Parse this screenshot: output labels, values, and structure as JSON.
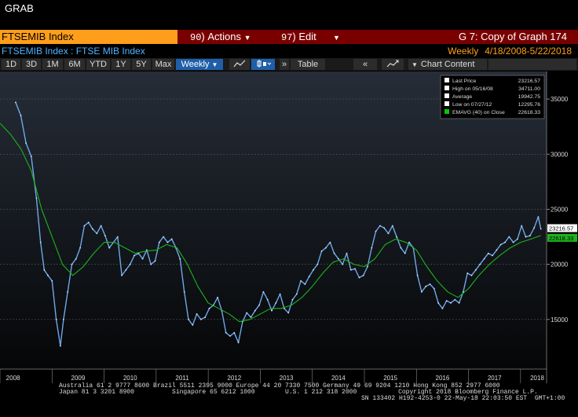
{
  "app": {
    "title": "GRAB"
  },
  "header": {
    "ticker": "FTSEMIB Index",
    "actions_num": "90",
    "actions_label": "Actions",
    "edit_num": "97",
    "edit_label": "Edit",
    "graph_title": "G 7: Copy of Graph 174",
    "subtitle": "FTSEMIB Index : FTSE MIB Index",
    "frequency": "Weekly",
    "date_range": "4/18/2008-5/22/2018"
  },
  "toolbar": {
    "buttons": [
      "1D",
      "3D",
      "1M",
      "6M",
      "YTD",
      "1Y",
      "5Y",
      "Max"
    ],
    "period_select": "Weekly",
    "table_label": "Table",
    "chart_content_label": "Chart Content"
  },
  "legend": {
    "rows": [
      {
        "label": "Last Price",
        "value": "23216.57",
        "color": "#ffffff"
      },
      {
        "label": "High on 05/16/08",
        "value": "34711.00",
        "color": "#ffffff"
      },
      {
        "label": "Average",
        "value": "19942.75",
        "color": "#ffffff"
      },
      {
        "label": "Low on 07/27/12",
        "value": "12295.76",
        "color": "#ffffff"
      },
      {
        "label": "EMAVG (40) on Close",
        "value": "22618.33",
        "color": "#00cc00"
      }
    ]
  },
  "footer": {
    "line1": "Australia 61 2 9777 8600 Brazil 5511 2395 9000 Europe 44 20 7330 7500 Germany 49 69 9204 1210 Hong Kong 852 2977 6000",
    "line2": "Japan 81 3 3201 8900          Singapore 65 6212 1000        U.S. 1 212 318 2000           Copyright 2018 Bloomberg Finance L.P.",
    "line3": "SN 133402 H192-4253-0 22-May-18 22:03:50 EST  GMT+1:00"
  },
  "chart_data": {
    "type": "line",
    "y_ticks": [
      15000,
      20000,
      25000,
      30000,
      35000
    ],
    "ylim": [
      10500,
      37500
    ],
    "x_years": [
      "2008",
      "2009",
      "2010",
      "2011",
      "2012",
      "2013",
      "2014",
      "2015",
      "2016",
      "2017",
      "2018"
    ],
    "xlim": [
      2008.0,
      2018.5
    ],
    "last_price_label": "23216.57",
    "ema_label": "22618.33",
    "series": [
      {
        "name": "Last Price",
        "color": "#6fa8e8",
        "points": [
          [
            2008.3,
            34700
          ],
          [
            2008.4,
            33500
          ],
          [
            2008.5,
            31000
          ],
          [
            2008.6,
            29800
          ],
          [
            2008.7,
            26000
          ],
          [
            2008.78,
            22000
          ],
          [
            2008.85,
            19500
          ],
          [
            2008.92,
            19000
          ],
          [
            2009.0,
            18500
          ],
          [
            2009.08,
            15000
          ],
          [
            2009.16,
            12600
          ],
          [
            2009.22,
            15000
          ],
          [
            2009.3,
            17500
          ],
          [
            2009.38,
            20000
          ],
          [
            2009.46,
            20500
          ],
          [
            2009.54,
            21500
          ],
          [
            2009.62,
            23500
          ],
          [
            2009.7,
            23800
          ],
          [
            2009.78,
            23200
          ],
          [
            2009.86,
            22800
          ],
          [
            2009.94,
            23500
          ],
          [
            2010.02,
            22600
          ],
          [
            2010.1,
            21500
          ],
          [
            2010.18,
            22000
          ],
          [
            2010.26,
            22500
          ],
          [
            2010.34,
            19000
          ],
          [
            2010.42,
            19500
          ],
          [
            2010.5,
            20000
          ],
          [
            2010.58,
            20800
          ],
          [
            2010.66,
            21000
          ],
          [
            2010.74,
            20500
          ],
          [
            2010.82,
            21300
          ],
          [
            2010.9,
            20000
          ],
          [
            2010.98,
            20300
          ],
          [
            2011.06,
            22000
          ],
          [
            2011.14,
            22500
          ],
          [
            2011.22,
            22000
          ],
          [
            2011.3,
            22300
          ],
          [
            2011.38,
            21500
          ],
          [
            2011.46,
            20500
          ],
          [
            2011.54,
            17500
          ],
          [
            2011.62,
            15000
          ],
          [
            2011.7,
            14500
          ],
          [
            2011.78,
            15500
          ],
          [
            2011.86,
            15000
          ],
          [
            2011.94,
            15200
          ],
          [
            2012.02,
            16000
          ],
          [
            2012.1,
            16300
          ],
          [
            2012.18,
            17000
          ],
          [
            2012.26,
            15800
          ],
          [
            2012.34,
            13800
          ],
          [
            2012.42,
            13500
          ],
          [
            2012.5,
            13800
          ],
          [
            2012.58,
            12900
          ],
          [
            2012.66,
            14800
          ],
          [
            2012.74,
            15600
          ],
          [
            2012.82,
            15200
          ],
          [
            2012.9,
            15800
          ],
          [
            2012.98,
            16300
          ],
          [
            2013.06,
            17500
          ],
          [
            2013.14,
            16800
          ],
          [
            2013.22,
            15800
          ],
          [
            2013.3,
            16500
          ],
          [
            2013.38,
            17300
          ],
          [
            2013.46,
            16000
          ],
          [
            2013.54,
            15600
          ],
          [
            2013.62,
            16800
          ],
          [
            2013.7,
            17300
          ],
          [
            2013.78,
            18500
          ],
          [
            2013.86,
            18200
          ],
          [
            2013.94,
            18900
          ],
          [
            2014.02,
            19500
          ],
          [
            2014.1,
            20000
          ],
          [
            2014.18,
            21200
          ],
          [
            2014.26,
            21500
          ],
          [
            2014.34,
            22000
          ],
          [
            2014.42,
            21000
          ],
          [
            2014.5,
            20500
          ],
          [
            2014.58,
            20000
          ],
          [
            2014.66,
            21000
          ],
          [
            2014.74,
            19500
          ],
          [
            2014.82,
            19600
          ],
          [
            2014.9,
            18800
          ],
          [
            2014.98,
            19000
          ],
          [
            2015.06,
            19800
          ],
          [
            2015.14,
            21500
          ],
          [
            2015.22,
            23000
          ],
          [
            2015.3,
            23500
          ],
          [
            2015.38,
            23300
          ],
          [
            2015.46,
            22800
          ],
          [
            2015.54,
            23500
          ],
          [
            2015.62,
            22500
          ],
          [
            2015.7,
            21500
          ],
          [
            2015.78,
            21000
          ],
          [
            2015.86,
            22000
          ],
          [
            2015.94,
            21500
          ],
          [
            2016.02,
            19000
          ],
          [
            2016.1,
            17500
          ],
          [
            2016.18,
            18000
          ],
          [
            2016.26,
            18200
          ],
          [
            2016.34,
            17800
          ],
          [
            2016.42,
            16500
          ],
          [
            2016.5,
            16000
          ],
          [
            2016.58,
            16700
          ],
          [
            2016.66,
            16500
          ],
          [
            2016.74,
            16800
          ],
          [
            2016.82,
            16500
          ],
          [
            2016.9,
            17500
          ],
          [
            2016.98,
            19200
          ],
          [
            2017.06,
            19000
          ],
          [
            2017.14,
            19500
          ],
          [
            2017.22,
            20000
          ],
          [
            2017.3,
            20500
          ],
          [
            2017.38,
            21000
          ],
          [
            2017.46,
            20800
          ],
          [
            2017.54,
            21300
          ],
          [
            2017.62,
            21800
          ],
          [
            2017.7,
            22000
          ],
          [
            2017.78,
            22500
          ],
          [
            2017.86,
            22000
          ],
          [
            2017.94,
            22300
          ],
          [
            2018.02,
            23500
          ],
          [
            2018.1,
            22500
          ],
          [
            2018.18,
            22600
          ],
          [
            2018.26,
            23300
          ],
          [
            2018.34,
            24300
          ],
          [
            2018.39,
            23216
          ]
        ]
      },
      {
        "name": "EMAVG (40) on Close",
        "color": "#1db31d",
        "points": [
          [
            2008.0,
            32800
          ],
          [
            2008.2,
            31800
          ],
          [
            2008.4,
            30500
          ],
          [
            2008.6,
            28500
          ],
          [
            2008.8,
            25000
          ],
          [
            2009.0,
            22500
          ],
          [
            2009.2,
            20000
          ],
          [
            2009.4,
            19000
          ],
          [
            2009.6,
            19800
          ],
          [
            2009.8,
            21000
          ],
          [
            2010.0,
            22000
          ],
          [
            2010.2,
            22000
          ],
          [
            2010.4,
            21500
          ],
          [
            2010.6,
            21000
          ],
          [
            2010.8,
            21200
          ],
          [
            2011.0,
            21300
          ],
          [
            2011.2,
            21800
          ],
          [
            2011.4,
            21500
          ],
          [
            2011.6,
            20000
          ],
          [
            2011.8,
            18000
          ],
          [
            2012.0,
            16500
          ],
          [
            2012.2,
            16000
          ],
          [
            2012.4,
            15500
          ],
          [
            2012.6,
            14800
          ],
          [
            2012.8,
            15000
          ],
          [
            2013.0,
            15500
          ],
          [
            2013.2,
            16000
          ],
          [
            2013.4,
            16000
          ],
          [
            2013.6,
            16300
          ],
          [
            2013.8,
            17000
          ],
          [
            2014.0,
            18000
          ],
          [
            2014.2,
            19200
          ],
          [
            2014.4,
            20200
          ],
          [
            2014.6,
            20500
          ],
          [
            2014.8,
            20000
          ],
          [
            2015.0,
            19800
          ],
          [
            2015.2,
            20500
          ],
          [
            2015.4,
            21800
          ],
          [
            2015.6,
            22300
          ],
          [
            2015.8,
            22000
          ],
          [
            2016.0,
            21300
          ],
          [
            2016.2,
            19800
          ],
          [
            2016.4,
            18500
          ],
          [
            2016.6,
            17500
          ],
          [
            2016.8,
            17000
          ],
          [
            2017.0,
            17800
          ],
          [
            2017.2,
            19000
          ],
          [
            2017.4,
            20000
          ],
          [
            2017.6,
            20800
          ],
          [
            2017.8,
            21500
          ],
          [
            2018.0,
            22000
          ],
          [
            2018.2,
            22300
          ],
          [
            2018.39,
            22618
          ]
        ]
      }
    ]
  }
}
